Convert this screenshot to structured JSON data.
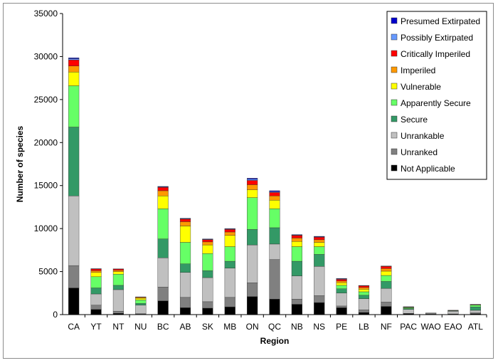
{
  "chart_data": {
    "type": "bar",
    "stacked": true,
    "xlabel": "Region",
    "ylabel": "Number of species",
    "ylim": [
      0,
      35000
    ],
    "yticks": [
      0,
      5000,
      10000,
      15000,
      20000,
      25000,
      30000,
      35000
    ],
    "grid": false,
    "legend_position": "top-right",
    "categories": [
      "CA",
      "YT",
      "NT",
      "NU",
      "BC",
      "AB",
      "SK",
      "MB",
      "ON",
      "QC",
      "NB",
      "NS",
      "PE",
      "LB",
      "NF",
      "PAC",
      "WAO",
      "EAO",
      "ATL"
    ],
    "series": [
      {
        "name": "Not Applicable",
        "color": "#000000",
        "values": [
          3100,
          600,
          150,
          50,
          1600,
          800,
          750,
          900,
          2100,
          1800,
          1200,
          1400,
          800,
          250,
          950,
          100,
          40,
          50,
          100
        ]
      },
      {
        "name": "Unranked",
        "color": "#808080",
        "values": [
          2600,
          500,
          250,
          50,
          1600,
          1200,
          750,
          1100,
          1600,
          4600,
          600,
          800,
          200,
          300,
          500,
          50,
          20,
          30,
          100
        ]
      },
      {
        "name": "Unrankable",
        "color": "#c0c0c0",
        "values": [
          8100,
          1300,
          2500,
          1000,
          3400,
          2900,
          2800,
          3400,
          4400,
          1800,
          2700,
          3400,
          1500,
          1300,
          1600,
          450,
          90,
          320,
          300
        ]
      },
      {
        "name": "Secure",
        "color": "#339966",
        "values": [
          8000,
          700,
          500,
          200,
          2200,
          1000,
          800,
          800,
          1800,
          1900,
          1700,
          1400,
          500,
          400,
          800,
          100,
          10,
          50,
          400
        ]
      },
      {
        "name": "Apparently Secure",
        "color": "#66ff66",
        "values": [
          4800,
          1300,
          1300,
          400,
          3500,
          2500,
          2000,
          1700,
          3700,
          2200,
          1700,
          900,
          400,
          400,
          700,
          100,
          10,
          30,
          200
        ]
      },
      {
        "name": "Vulnerable",
        "color": "#ffff00",
        "values": [
          1600,
          500,
          300,
          200,
          1500,
          1900,
          1000,
          1300,
          900,
          1000,
          600,
          500,
          300,
          300,
          500,
          50,
          5,
          10,
          50
        ]
      },
      {
        "name": "Imperiled",
        "color": "#ff9900",
        "values": [
          700,
          200,
          150,
          100,
          600,
          500,
          350,
          400,
          600,
          500,
          400,
          300,
          200,
          200,
          300,
          30,
          5,
          5,
          20
        ]
      },
      {
        "name": "Critically Imperiled",
        "color": "#ff0000",
        "values": [
          700,
          200,
          150,
          50,
          400,
          300,
          250,
          300,
          500,
          400,
          300,
          300,
          200,
          200,
          250,
          20,
          5,
          5,
          10
        ]
      },
      {
        "name": "Possibly Extirpated",
        "color": "#6699ff",
        "values": [
          150,
          20,
          10,
          5,
          50,
          50,
          50,
          50,
          150,
          100,
          50,
          50,
          50,
          20,
          30,
          5,
          0,
          0,
          5
        ]
      },
      {
        "name": "Presumed Extirpated",
        "color": "#0000cc",
        "values": [
          100,
          20,
          10,
          5,
          50,
          50,
          50,
          50,
          100,
          100,
          50,
          50,
          50,
          20,
          20,
          5,
          0,
          0,
          5
        ]
      }
    ]
  }
}
